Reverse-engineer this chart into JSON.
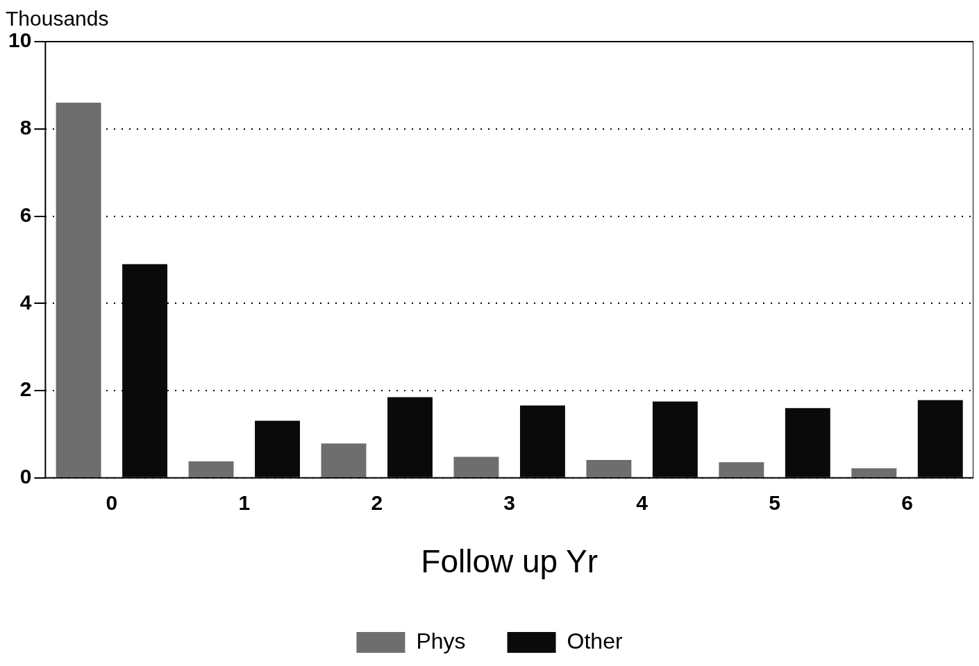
{
  "chart_data": {
    "type": "bar",
    "ylabel": "Thousands",
    "xlabel": "Follow up Yr",
    "categories": [
      "0",
      "1",
      "2",
      "3",
      "4",
      "5",
      "6"
    ],
    "series": [
      {
        "name": "Phys",
        "color": "#6e6e6e",
        "values": [
          8.6,
          0.38,
          0.79,
          0.48,
          0.41,
          0.36,
          0.22
        ]
      },
      {
        "name": "Other",
        "color": "#0a0a0a",
        "values": [
          4.9,
          1.31,
          1.85,
          1.66,
          1.75,
          1.6,
          1.78
        ]
      }
    ],
    "ylim": [
      0,
      10
    ],
    "yticks": [
      0,
      2,
      4,
      6,
      8,
      10
    ],
    "grid": "y",
    "legend": "bottom"
  }
}
